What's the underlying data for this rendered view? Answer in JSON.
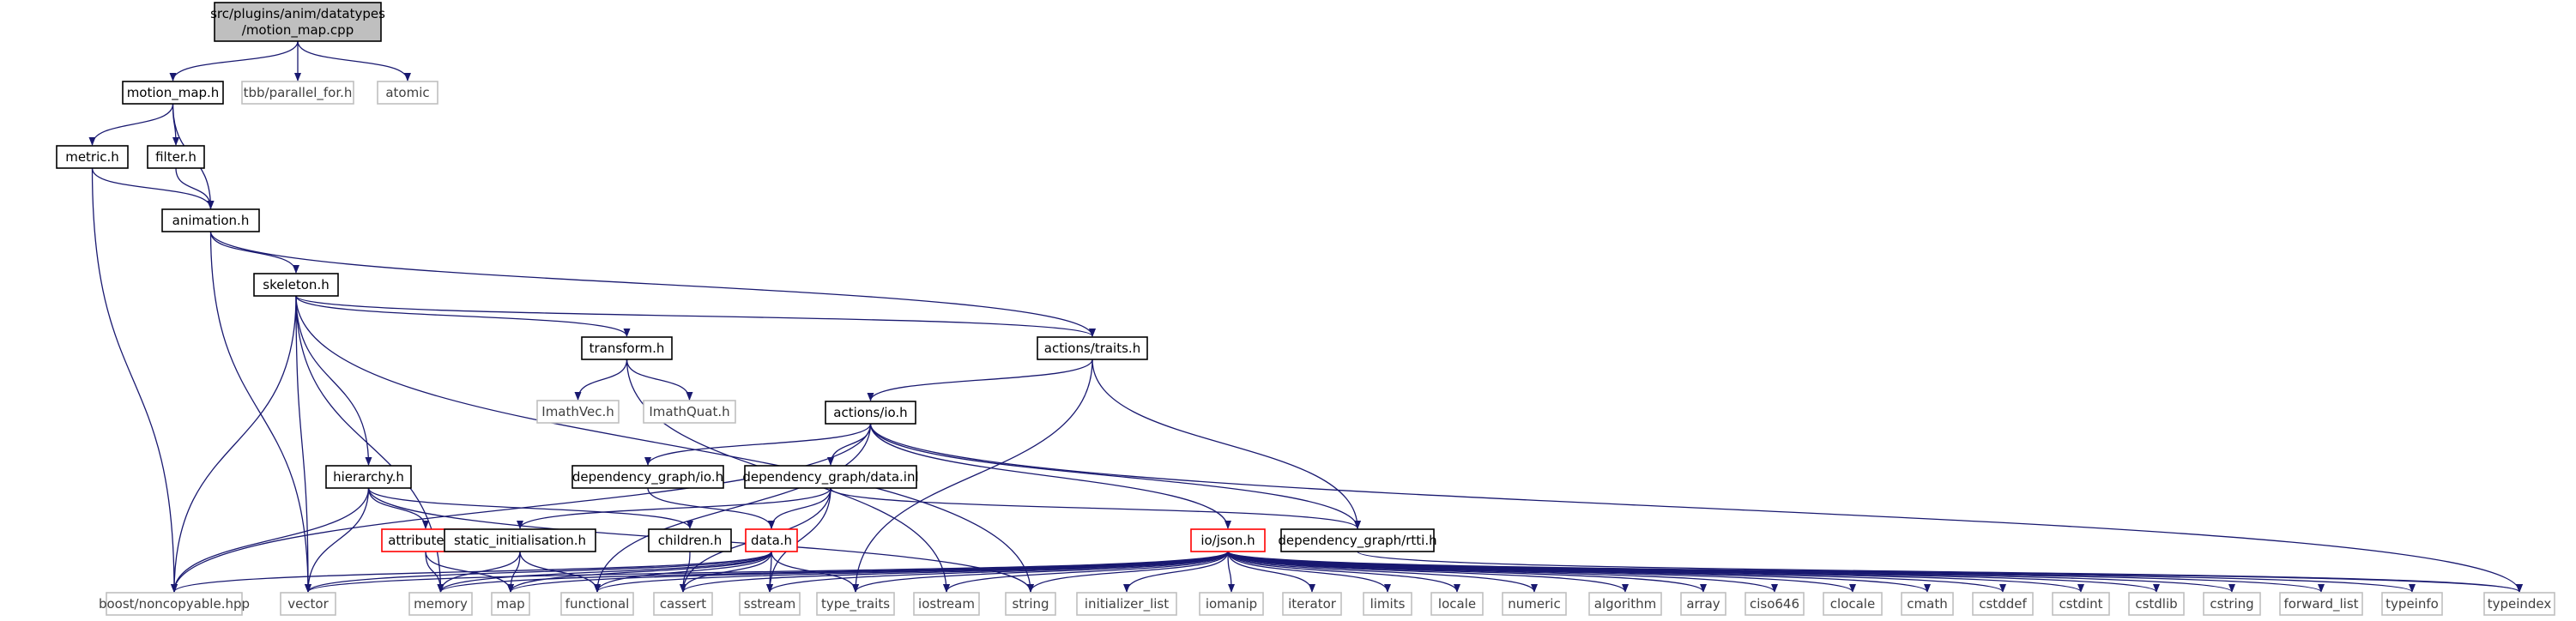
{
  "nodes": [
    {
      "id": "root",
      "lines": [
        "src/plugins/anim/datatypes",
        "/motion_map.cpp"
      ],
      "style": "root"
    },
    {
      "id": "motion_map_h",
      "lines": [
        "motion_map.h"
      ],
      "style": "normal"
    },
    {
      "id": "tbb_parallel_for_h",
      "lines": [
        "tbb/parallel_for.h"
      ],
      "style": "external"
    },
    {
      "id": "atomic",
      "lines": [
        "atomic"
      ],
      "style": "external"
    },
    {
      "id": "metric_h",
      "lines": [
        "metric.h"
      ],
      "style": "normal"
    },
    {
      "id": "filter_h",
      "lines": [
        "filter.h"
      ],
      "style": "normal"
    },
    {
      "id": "animation_h",
      "lines": [
        "animation.h"
      ],
      "style": "normal"
    },
    {
      "id": "skeleton_h",
      "lines": [
        "skeleton.h"
      ],
      "style": "normal"
    },
    {
      "id": "transform_h",
      "lines": [
        "transform.h"
      ],
      "style": "normal"
    },
    {
      "id": "actions_traits_h",
      "lines": [
        "actions/traits.h"
      ],
      "style": "normal"
    },
    {
      "id": "imathvec_h",
      "lines": [
        "ImathVec.h"
      ],
      "style": "external"
    },
    {
      "id": "imathquat_h",
      "lines": [
        "ImathQuat.h"
      ],
      "style": "external"
    },
    {
      "id": "actions_io_h",
      "lines": [
        "actions/io.h"
      ],
      "style": "normal"
    },
    {
      "id": "hierarchy_h",
      "lines": [
        "hierarchy.h"
      ],
      "style": "normal"
    },
    {
      "id": "dep_graph_io_h",
      "lines": [
        "dependency_graph/io.h"
      ],
      "style": "normal"
    },
    {
      "id": "dep_graph_data_inl",
      "lines": [
        "dependency_graph/data.inl"
      ],
      "style": "normal"
    },
    {
      "id": "attributes_h",
      "lines": [
        "attributes.h"
      ],
      "style": "missing"
    },
    {
      "id": "static_init_h",
      "lines": [
        "static_initialisation.h"
      ],
      "style": "normal"
    },
    {
      "id": "children_h",
      "lines": [
        "children.h"
      ],
      "style": "normal"
    },
    {
      "id": "data_h",
      "lines": [
        "data.h"
      ],
      "style": "missing"
    },
    {
      "id": "io_json_h",
      "lines": [
        "io/json.h"
      ],
      "style": "missing"
    },
    {
      "id": "dep_graph_rtti_h",
      "lines": [
        "dependency_graph/rtti.h"
      ],
      "style": "normal"
    },
    {
      "id": "boost_noncopyable",
      "lines": [
        "boost/noncopyable.hpp"
      ],
      "style": "external"
    },
    {
      "id": "vector",
      "lines": [
        "vector"
      ],
      "style": "external"
    },
    {
      "id": "memory",
      "lines": [
        "memory"
      ],
      "style": "external"
    },
    {
      "id": "map",
      "lines": [
        "map"
      ],
      "style": "external"
    },
    {
      "id": "functional",
      "lines": [
        "functional"
      ],
      "style": "external"
    },
    {
      "id": "cassert",
      "lines": [
        "cassert"
      ],
      "style": "external"
    },
    {
      "id": "sstream",
      "lines": [
        "sstream"
      ],
      "style": "external"
    },
    {
      "id": "type_traits",
      "lines": [
        "type_traits"
      ],
      "style": "external"
    },
    {
      "id": "iostream",
      "lines": [
        "iostream"
      ],
      "style": "external"
    },
    {
      "id": "string",
      "lines": [
        "string"
      ],
      "style": "external"
    },
    {
      "id": "initializer_list",
      "lines": [
        "initializer_list"
      ],
      "style": "external"
    },
    {
      "id": "iomanip",
      "lines": [
        "iomanip"
      ],
      "style": "external"
    },
    {
      "id": "iterator",
      "lines": [
        "iterator"
      ],
      "style": "external"
    },
    {
      "id": "limits",
      "lines": [
        "limits"
      ],
      "style": "external"
    },
    {
      "id": "locale",
      "lines": [
        "locale"
      ],
      "style": "external"
    },
    {
      "id": "numeric",
      "lines": [
        "numeric"
      ],
      "style": "external"
    },
    {
      "id": "algorithm",
      "lines": [
        "algorithm"
      ],
      "style": "external"
    },
    {
      "id": "array",
      "lines": [
        "array"
      ],
      "style": "external"
    },
    {
      "id": "ciso646",
      "lines": [
        "ciso646"
      ],
      "style": "external"
    },
    {
      "id": "clocale",
      "lines": [
        "clocale"
      ],
      "style": "external"
    },
    {
      "id": "cmath",
      "lines": [
        "cmath"
      ],
      "style": "external"
    },
    {
      "id": "cstddef",
      "lines": [
        "cstddef"
      ],
      "style": "external"
    },
    {
      "id": "cstdint",
      "lines": [
        "cstdint"
      ],
      "style": "external"
    },
    {
      "id": "cstdlib",
      "lines": [
        "cstdlib"
      ],
      "style": "external"
    },
    {
      "id": "cstring",
      "lines": [
        "cstring"
      ],
      "style": "external"
    },
    {
      "id": "forward_list",
      "lines": [
        "forward_list"
      ],
      "style": "external"
    },
    {
      "id": "typeinfo",
      "lines": [
        "typeinfo"
      ],
      "style": "external"
    },
    {
      "id": "typeindex",
      "lines": [
        "typeindex"
      ],
      "style": "external"
    }
  ],
  "edges": [
    [
      "root",
      "motion_map_h"
    ],
    [
      "root",
      "tbb_parallel_for_h"
    ],
    [
      "root",
      "atomic"
    ],
    [
      "motion_map_h",
      "metric_h"
    ],
    [
      "motion_map_h",
      "filter_h"
    ],
    [
      "motion_map_h",
      "animation_h"
    ],
    [
      "metric_h",
      "animation_h"
    ],
    [
      "metric_h",
      "boost_noncopyable"
    ],
    [
      "filter_h",
      "animation_h"
    ],
    [
      "animation_h",
      "skeleton_h"
    ],
    [
      "animation_h",
      "actions_traits_h"
    ],
    [
      "animation_h",
      "vector"
    ],
    [
      "skeleton_h",
      "transform_h"
    ],
    [
      "skeleton_h",
      "actions_traits_h"
    ],
    [
      "skeleton_h",
      "hierarchy_h"
    ],
    [
      "skeleton_h",
      "boost_noncopyable"
    ],
    [
      "skeleton_h",
      "vector"
    ],
    [
      "skeleton_h",
      "memory"
    ],
    [
      "skeleton_h",
      "string"
    ],
    [
      "transform_h",
      "imathvec_h"
    ],
    [
      "transform_h",
      "imathquat_h"
    ],
    [
      "transform_h",
      "iostream"
    ],
    [
      "actions_traits_h",
      "actions_io_h"
    ],
    [
      "actions_traits_h",
      "dep_graph_rtti_h"
    ],
    [
      "actions_traits_h",
      "type_traits"
    ],
    [
      "actions_io_h",
      "dep_graph_io_h"
    ],
    [
      "actions_io_h",
      "dep_graph_data_inl"
    ],
    [
      "actions_io_h",
      "io_json_h"
    ],
    [
      "actions_io_h",
      "dep_graph_rtti_h"
    ],
    [
      "actions_io_h",
      "boost_noncopyable"
    ],
    [
      "actions_io_h",
      "functional"
    ],
    [
      "actions_io_h",
      "typeindex"
    ],
    [
      "hierarchy_h",
      "attributes_h"
    ],
    [
      "hierarchy_h",
      "children_h"
    ],
    [
      "hierarchy_h",
      "boost_noncopyable"
    ],
    [
      "hierarchy_h",
      "vector"
    ],
    [
      "hierarchy_h",
      "string"
    ],
    [
      "dep_graph_io_h",
      "data_h"
    ],
    [
      "dep_graph_data_inl",
      "static_init_h"
    ],
    [
      "dep_graph_data_inl",
      "data_h"
    ],
    [
      "dep_graph_data_inl",
      "dep_graph_rtti_h"
    ],
    [
      "dep_graph_data_inl",
      "cassert"
    ],
    [
      "dep_graph_data_inl",
      "sstream"
    ],
    [
      "attributes_h",
      "memory"
    ],
    [
      "attributes_h",
      "map"
    ],
    [
      "static_init_h",
      "memory"
    ],
    [
      "static_init_h",
      "map"
    ],
    [
      "static_init_h",
      "functional"
    ],
    [
      "children_h",
      "cassert"
    ],
    [
      "data_h",
      "boost_noncopyable"
    ],
    [
      "data_h",
      "vector"
    ],
    [
      "data_h",
      "memory"
    ],
    [
      "data_h",
      "map"
    ],
    [
      "data_h",
      "functional"
    ],
    [
      "data_h",
      "cassert"
    ],
    [
      "data_h",
      "sstream"
    ],
    [
      "data_h",
      "type_traits"
    ],
    [
      "io_json_h",
      "vector"
    ],
    [
      "io_json_h",
      "memory"
    ],
    [
      "io_json_h",
      "map"
    ],
    [
      "io_json_h",
      "functional"
    ],
    [
      "io_json_h",
      "cassert"
    ],
    [
      "io_json_h",
      "sstream"
    ],
    [
      "io_json_h",
      "type_traits"
    ],
    [
      "io_json_h",
      "iostream"
    ],
    [
      "io_json_h",
      "string"
    ],
    [
      "io_json_h",
      "initializer_list"
    ],
    [
      "io_json_h",
      "iomanip"
    ],
    [
      "io_json_h",
      "iterator"
    ],
    [
      "io_json_h",
      "limits"
    ],
    [
      "io_json_h",
      "locale"
    ],
    [
      "io_json_h",
      "numeric"
    ],
    [
      "io_json_h",
      "algorithm"
    ],
    [
      "io_json_h",
      "array"
    ],
    [
      "io_json_h",
      "ciso646"
    ],
    [
      "io_json_h",
      "clocale"
    ],
    [
      "io_json_h",
      "cmath"
    ],
    [
      "io_json_h",
      "cstddef"
    ],
    [
      "io_json_h",
      "cstdint"
    ],
    [
      "io_json_h",
      "cstdlib"
    ],
    [
      "io_json_h",
      "cstring"
    ],
    [
      "io_json_h",
      "forward_list"
    ],
    [
      "io_json_h",
      "typeinfo"
    ],
    [
      "io_json_h",
      "typeindex"
    ],
    [
      "dep_graph_rtti_h",
      "typeindex"
    ]
  ],
  "colors": {
    "edge": "#191970",
    "root_fill": "#bfbfbf",
    "normal_stroke": "#000000",
    "missing_stroke": "#ff0000",
    "external_stroke": "#bfbfbf",
    "external_text": "#404040"
  }
}
